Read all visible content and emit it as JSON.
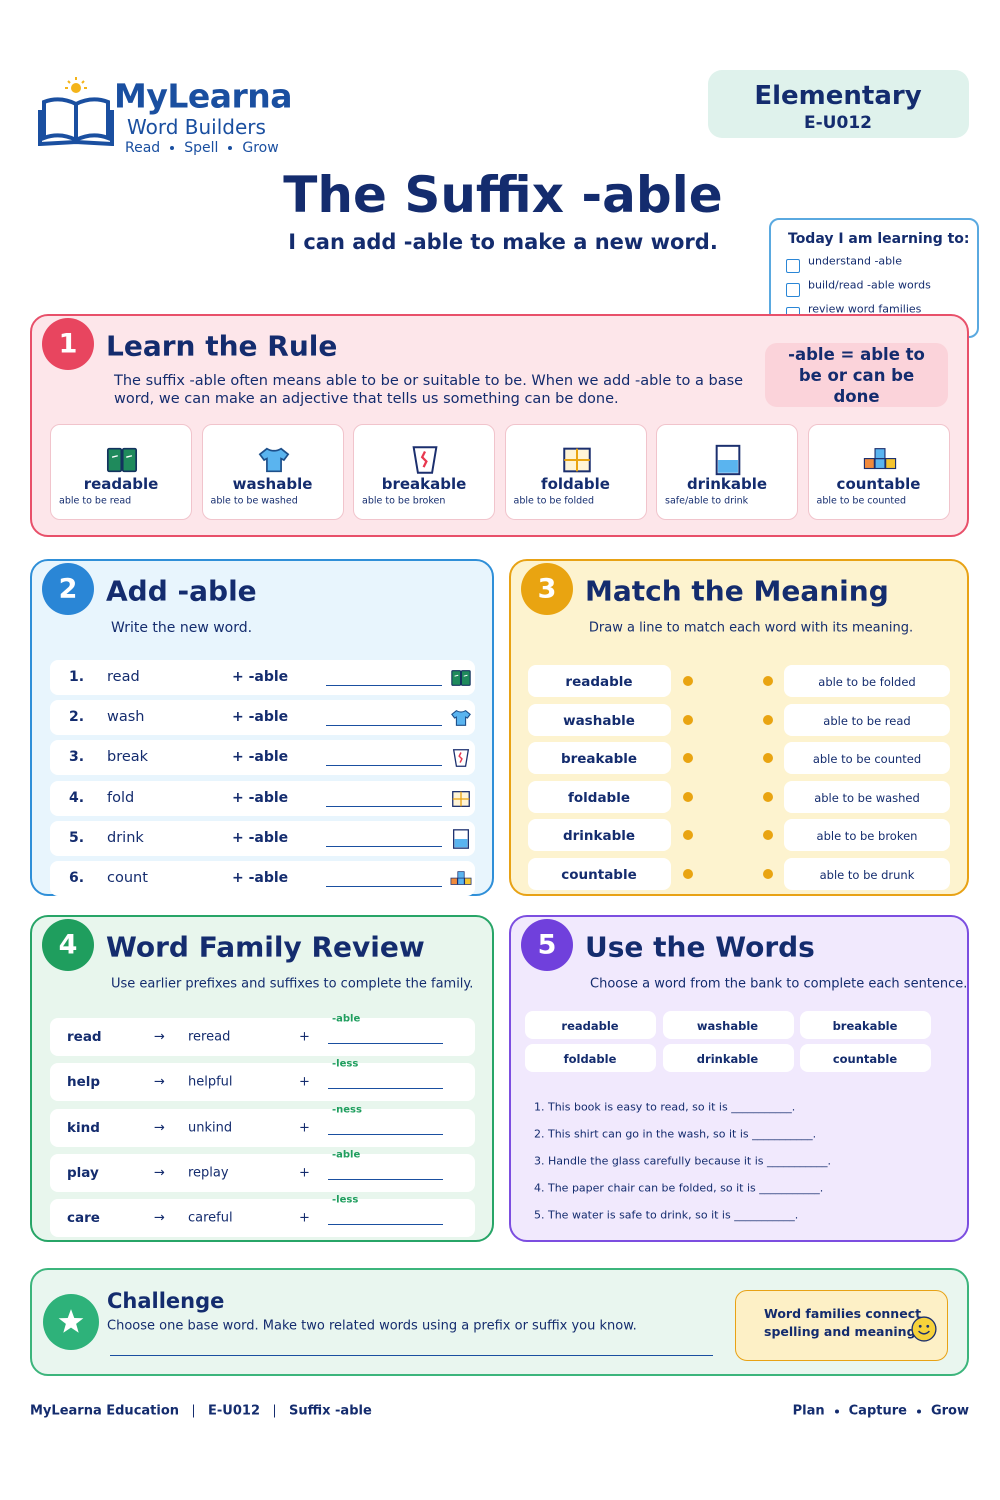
{
  "header": {
    "brand": "MyLearna",
    "subbrand": "Word Builders",
    "tagline": [
      "Read",
      "Spell",
      "Grow"
    ],
    "level": "Elementary",
    "code": "E-U012",
    "title": "The Suffix -able",
    "subtitle": "I can add -able to make a new word."
  },
  "objectives": {
    "heading": "Today I am learning to:",
    "items": [
      "understand -able",
      "build/read -able words",
      "review word families"
    ]
  },
  "learn": {
    "number": "1",
    "title": "Learn the Rule",
    "text": "The suffix -able often means able to be or suitable to be. When we add -able to a base word, we can make an adjective that tells us something can be done.",
    "rule": "-able = able to be or can be done",
    "words": [
      {
        "word": "readable",
        "meaning": "able to be read"
      },
      {
        "word": "washable",
        "meaning": "able to be washed"
      },
      {
        "word": "breakable",
        "meaning": "able to be broken"
      },
      {
        "word": "foldable",
        "meaning": "able to be folded"
      },
      {
        "word": "drinkable",
        "meaning": "safe/able to drink"
      },
      {
        "word": "countable",
        "meaning": "able to be counted"
      }
    ]
  },
  "add": {
    "number": "2",
    "title": "Add -able",
    "instruction": "Write the new word.",
    "suffix": "+ -able",
    "rows": [
      {
        "num": "1.",
        "base": "read"
      },
      {
        "num": "2.",
        "base": "wash"
      },
      {
        "num": "3.",
        "base": "break"
      },
      {
        "num": "4.",
        "base": "fold"
      },
      {
        "num": "5.",
        "base": "drink"
      },
      {
        "num": "6.",
        "base": "count"
      }
    ]
  },
  "match": {
    "number": "3",
    "title": "Match the Meaning",
    "instruction": "Draw a line to match each word with its meaning.",
    "words": [
      "readable",
      "washable",
      "breakable",
      "foldable",
      "drinkable",
      "countable"
    ],
    "meanings": [
      "able to be folded",
      "able to be read",
      "able to be counted",
      "able to be washed",
      "able to be broken",
      "able to be drunk"
    ]
  },
  "family": {
    "number": "4",
    "title": "Word Family Review",
    "instruction": "Use earlier prefixes and suffixes to complete the family.",
    "arrow": "→",
    "plus": "+",
    "rows": [
      {
        "base": "read",
        "example": "reread",
        "hint": "-able"
      },
      {
        "base": "help",
        "example": "helpful",
        "hint": "-less"
      },
      {
        "base": "kind",
        "example": "unkind",
        "hint": "-ness"
      },
      {
        "base": "play",
        "example": "replay",
        "hint": "-able"
      },
      {
        "base": "care",
        "example": "careful",
        "hint": "-less"
      }
    ]
  },
  "use": {
    "number": "5",
    "title": "Use the Words",
    "instruction": "Choose a word from the bank to complete each sentence.",
    "bank": [
      "readable",
      "washable",
      "breakable",
      "foldable",
      "drinkable",
      "countable"
    ],
    "sentences": [
      "1. This book is easy to read, so it is ___________.",
      "2. This shirt can go in the wash, so it is ___________.",
      "3. Handle the glass carefully because it is ___________.",
      "4. The paper chair can be folded, so it is ___________.",
      "5. The water is safe to drink, so it is ___________."
    ]
  },
  "challenge": {
    "title": "Challenge",
    "text": "Choose one base word. Make two related words using a prefix or suffix you know.",
    "note": "Word families connect spelling and meaning"
  },
  "footer": {
    "left": [
      "MyLearna Education",
      "E-U012",
      "Suffix -able"
    ],
    "right": [
      "Plan",
      "Capture",
      "Grow"
    ]
  }
}
